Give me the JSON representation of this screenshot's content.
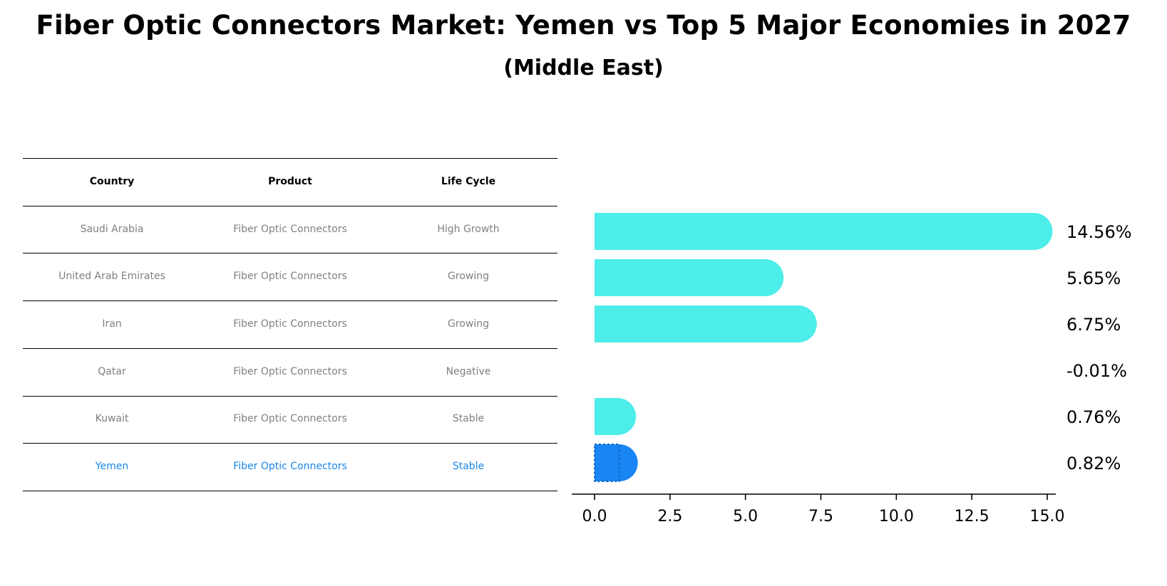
{
  "chart_data": {
    "type": "bar",
    "orientation": "horizontal",
    "title": "Fiber Optic Connectors Market: Yemen vs Top 5 Major Economies in 2027",
    "subtitle": "(Middle East)",
    "categories": [
      "Saudi Arabia",
      "United Arab Emirates",
      "Iran",
      "Qatar",
      "Kuwait",
      "Yemen"
    ],
    "values": [
      14.56,
      5.65,
      6.75,
      -0.01,
      0.76,
      0.82
    ],
    "value_labels": [
      "14.56%",
      "5.65%",
      "6.75%",
      "-0.01%",
      "0.76%",
      "0.82%"
    ],
    "highlight": "Yemen",
    "xlim": [
      -0.75,
      15.3
    ],
    "xticks": [
      0.0,
      2.5,
      5.0,
      7.5,
      10.0,
      12.5,
      15.0
    ],
    "xtick_labels": [
      "0.0",
      "2.5",
      "5.0",
      "7.5",
      "10.0",
      "12.5",
      "15.0"
    ],
    "xlabel": "",
    "ylabel": "",
    "colors": {
      "bar": "#4deeea",
      "highlight": "#1a86f5",
      "highlight_text": "#1a86e8",
      "muted_text": "#808080"
    }
  },
  "table": {
    "headers": [
      "Country",
      "Product",
      "Life Cycle"
    ],
    "rows": [
      [
        "Saudi Arabia",
        "Fiber Optic Connectors",
        "High Growth"
      ],
      [
        "United Arab Emirates",
        "Fiber Optic Connectors",
        "Growing"
      ],
      [
        "Iran",
        "Fiber Optic Connectors",
        "Growing"
      ],
      [
        "Qatar",
        "Fiber Optic Connectors",
        "Negative"
      ],
      [
        "Kuwait",
        "Fiber Optic Connectors",
        "Stable"
      ],
      [
        "Yemen",
        "Fiber Optic Connectors",
        "Stable"
      ]
    ]
  }
}
